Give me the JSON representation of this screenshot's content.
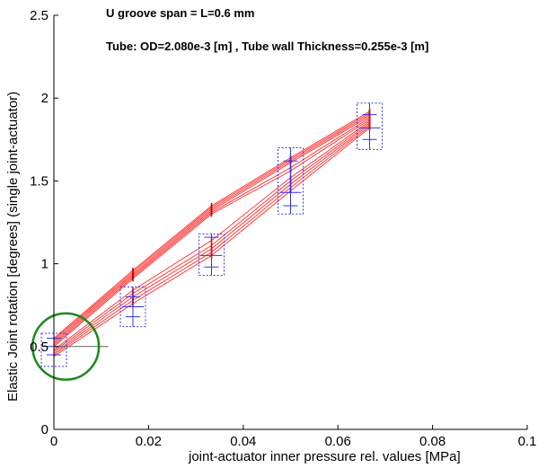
{
  "chart_data": {
    "type": "line",
    "title": "",
    "xlabel": "joint-actuator inner pressure rel. values [MPa]",
    "ylabel": "Elastic Joint rotation [degrees]  (single joint-actuator)",
    "xlim": [
      0,
      0.1
    ],
    "ylim": [
      0,
      2.5
    ],
    "x_ticks": [
      0,
      0.02,
      0.04,
      0.06,
      0.08,
      0.1
    ],
    "x_tick_labels": [
      "0",
      "0.02",
      "0.04",
      "0.06",
      "0.08",
      "0.1"
    ],
    "y_ticks": [
      0,
      0.5,
      1,
      1.5,
      2,
      2.5
    ],
    "y_tick_labels": [
      "0",
      "0.5",
      "1",
      "1.5",
      "2",
      "2.5"
    ],
    "grid": false,
    "annotations": [
      "U groove span = L=0.6 mm",
      "Tube: OD=2.080e-3 [m] , Tube wall Thickness=0.255e-3 [m]"
    ],
    "colors": {
      "measurement_lines": "#ff0000",
      "measurement_ticks": "#cc0000",
      "mean_std_bars": "#3333ee",
      "range_boxes": "#3333ee",
      "circle_marker": "#1a8a1a",
      "axis": "#000000"
    },
    "series": [
      {
        "x": [
          0,
          0.0167,
          0.0333,
          0.05,
          0.0667
        ],
        "values": [
          0.55,
          0.96,
          1.35,
          1.64,
          1.92
        ]
      },
      {
        "x": [
          0,
          0.0167,
          0.0333,
          0.05,
          0.0667
        ],
        "values": [
          0.54,
          0.95,
          1.34,
          1.63,
          1.91
        ]
      },
      {
        "x": [
          0,
          0.0167,
          0.0333,
          0.05,
          0.0667
        ],
        "values": [
          0.53,
          0.94,
          1.33,
          1.62,
          1.9
        ]
      },
      {
        "x": [
          0,
          0.0167,
          0.0333,
          0.05,
          0.0667
        ],
        "values": [
          0.52,
          0.93,
          1.32,
          1.61,
          1.89
        ]
      },
      {
        "x": [
          0,
          0.0167,
          0.0333,
          0.05,
          0.0667
        ],
        "values": [
          0.51,
          0.92,
          1.31,
          1.58,
          1.88
        ]
      },
      {
        "x": [
          0,
          0.0167,
          0.0333,
          0.05,
          0.0667
        ],
        "values": [
          0.5,
          0.91,
          1.3,
          1.56,
          1.87
        ]
      },
      {
        "x": [
          0,
          0.0167,
          0.0333,
          0.05,
          0.0667
        ],
        "values": [
          0.48,
          0.84,
          1.14,
          1.52,
          1.86
        ]
      },
      {
        "x": [
          0,
          0.0167,
          0.0333,
          0.05,
          0.0667
        ],
        "values": [
          0.47,
          0.82,
          1.11,
          1.5,
          1.85
        ]
      },
      {
        "x": [
          0,
          0.0167,
          0.0333,
          0.05,
          0.0667
        ],
        "values": [
          0.46,
          0.8,
          1.09,
          1.48,
          1.84
        ]
      },
      {
        "x": [
          0,
          0.0167,
          0.0333,
          0.05,
          0.0667
        ],
        "values": [
          0.45,
          0.78,
          1.07,
          1.46,
          1.83
        ]
      },
      {
        "x": [
          0,
          0.0167,
          0.0333,
          0.05,
          0.0667
        ],
        "values": [
          0.44,
          0.76,
          1.05,
          1.44,
          1.82
        ]
      }
    ],
    "error_bars": [
      {
        "x": 0,
        "mean": 0.5,
        "std_low": 0.45,
        "std_high": 0.55,
        "min": 0.38,
        "max": 0.58
      },
      {
        "x": 0.0167,
        "mean": 0.74,
        "std_low": 0.68,
        "std_high": 0.8,
        "min": 0.62,
        "max": 0.86
      },
      {
        "x": 0.0333,
        "mean": 1.05,
        "std_low": 0.98,
        "std_high": 1.16,
        "min": 0.93,
        "max": 1.18
      },
      {
        "x": 0.05,
        "mean": 1.43,
        "std_low": 1.35,
        "std_high": 1.62,
        "min": 1.3,
        "max": 1.7
      },
      {
        "x": 0.0667,
        "mean": 1.82,
        "std_low": 1.75,
        "std_high": 1.9,
        "min": 1.69,
        "max": 1.97
      }
    ],
    "circle_marker": {
      "x": 0.0025,
      "y": 0.5,
      "r": 0.2
    },
    "reference_line": {
      "x": [
        0,
        0.0115
      ],
      "y": [
        0.5,
        0.5
      ]
    }
  }
}
